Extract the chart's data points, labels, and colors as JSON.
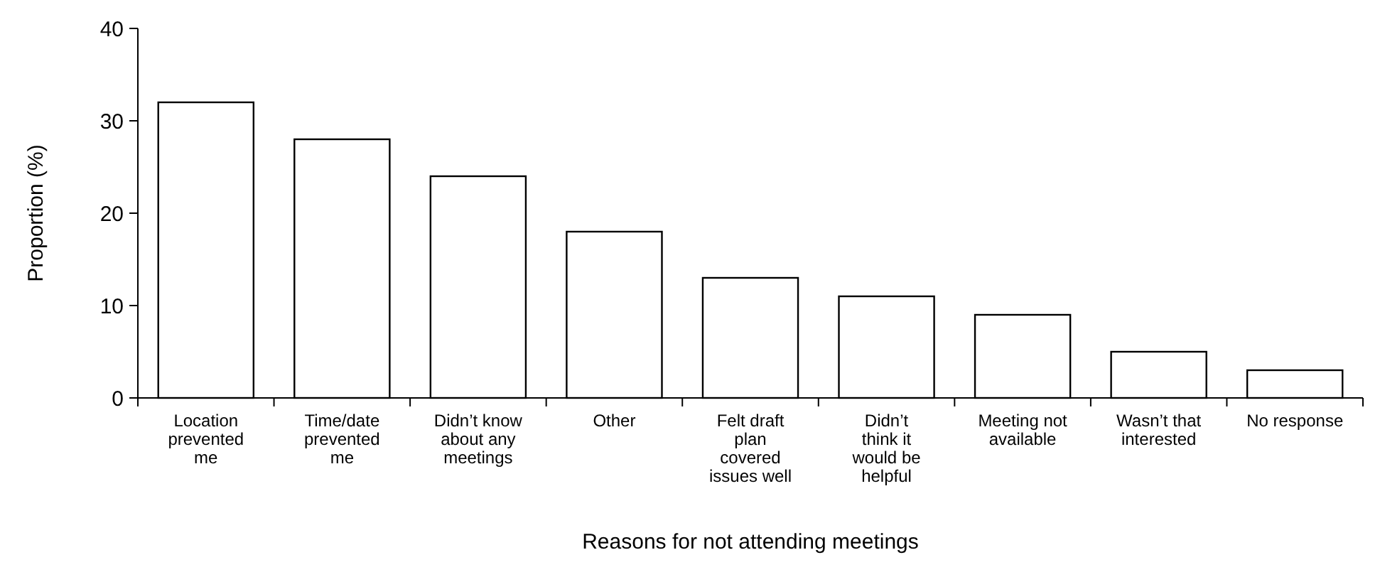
{
  "chart_data": {
    "type": "bar",
    "xlabel": "Reasons for not attending meetings",
    "ylabel": "Proportion (%)",
    "categories": [
      "Location prevented me",
      "Time/date prevented me",
      "Didn’t know about any meetings",
      "Other",
      "Felt draft plan covered issues well",
      "Didn’t think it would be helpful",
      "Meeting not available",
      "Wasn’t that interested",
      "No response"
    ],
    "values": [
      32,
      28,
      24,
      18,
      13,
      11,
      9,
      5,
      3
    ],
    "color": "#ffffff",
    "ylim": [
      0,
      40
    ],
    "yticks": [
      0,
      10,
      20,
      30,
      40
    ],
    "grid": false
  }
}
